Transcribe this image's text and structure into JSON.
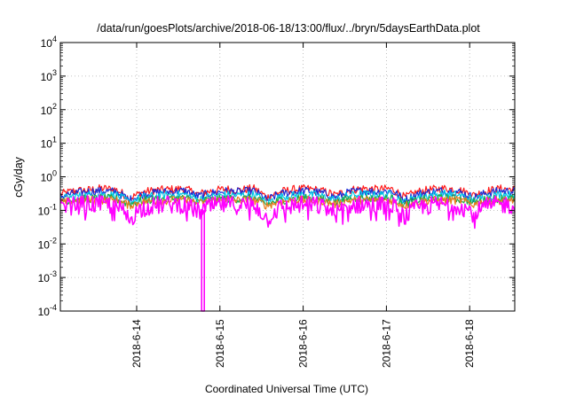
{
  "chart_data": {
    "type": "line",
    "title": "/data/run/goesPlots/archive/2018-06-18/13:00/flux/../bryn/5daysEarthData.plot",
    "xlabel": "Coordinated Universal Time (UTC)",
    "ylabel": "cGy/day",
    "y_scale": "log",
    "ylim": [
      0.0001,
      10000
    ],
    "y_ticks": [
      {
        "value": 0.0001,
        "base": "10",
        "exp": "-4"
      },
      {
        "value": 0.001,
        "base": "10",
        "exp": "-3"
      },
      {
        "value": 0.01,
        "base": "10",
        "exp": "-2"
      },
      {
        "value": 0.1,
        "base": "10",
        "exp": "-1"
      },
      {
        "value": 1,
        "base": "10",
        "exp": "0"
      },
      {
        "value": 10,
        "base": "10",
        "exp": "1"
      },
      {
        "value": 100,
        "base": "10",
        "exp": "2"
      },
      {
        "value": 1000,
        "base": "10",
        "exp": "3"
      },
      {
        "value": 10000,
        "base": "10",
        "exp": "4"
      }
    ],
    "xlim": [
      "2018-06-13T02:00",
      "2018-06-18T13:00"
    ],
    "x_ticks": [
      "2018-6-14",
      "2018-6-15",
      "2018-6-16",
      "2018-6-17",
      "2018-6-18"
    ],
    "grid": true,
    "legend": "none",
    "dip": {
      "time": "2018-06-14T19:00",
      "min_value": 0.0001
    },
    "series": [
      {
        "color": "#ff1a1a",
        "values": [
          0.3,
          0.38,
          0.4,
          0.45,
          0.42,
          0.22,
          0.35,
          0.4,
          0.42,
          0.44,
          0.3,
          0.38,
          0.43,
          0.4,
          0.45,
          0.24,
          0.36,
          0.42,
          0.44,
          0.38,
          0.28,
          0.4,
          0.45,
          0.42,
          0.44,
          0.24,
          0.36,
          0.42,
          0.45,
          0.4,
          0.28,
          0.38,
          0.44,
          0.42
        ]
      },
      {
        "color": "#1a2bd6",
        "values": [
          0.26,
          0.32,
          0.36,
          0.38,
          0.36,
          0.2,
          0.3,
          0.34,
          0.36,
          0.38,
          0.26,
          0.33,
          0.37,
          0.35,
          0.38,
          0.2,
          0.31,
          0.36,
          0.38,
          0.33,
          0.24,
          0.35,
          0.38,
          0.36,
          0.38,
          0.2,
          0.31,
          0.36,
          0.39,
          0.35,
          0.24,
          0.33,
          0.38,
          0.36
        ]
      },
      {
        "color": "#00c8e6",
        "values": [
          0.22,
          0.26,
          0.28,
          0.3,
          0.29,
          0.17,
          0.24,
          0.27,
          0.29,
          0.3,
          0.21,
          0.26,
          0.29,
          0.28,
          0.3,
          0.17,
          0.25,
          0.28,
          0.3,
          0.26,
          0.2,
          0.28,
          0.3,
          0.29,
          0.3,
          0.17,
          0.25,
          0.29,
          0.31,
          0.28,
          0.2,
          0.26,
          0.3,
          0.29
        ]
      },
      {
        "color": "#21a84a",
        "values": [
          0.19,
          0.21,
          0.22,
          0.23,
          0.22,
          0.15,
          0.2,
          0.21,
          0.22,
          0.23,
          0.18,
          0.21,
          0.22,
          0.22,
          0.23,
          0.15,
          0.2,
          0.22,
          0.23,
          0.21,
          0.17,
          0.22,
          0.23,
          0.22,
          0.23,
          0.15,
          0.2,
          0.22,
          0.23,
          0.22,
          0.17,
          0.21,
          0.23,
          0.22
        ]
      },
      {
        "color": "#e87a1a",
        "values": [
          0.17,
          0.19,
          0.2,
          0.2,
          0.2,
          0.14,
          0.18,
          0.19,
          0.2,
          0.2,
          0.16,
          0.19,
          0.2,
          0.2,
          0.2,
          0.14,
          0.18,
          0.2,
          0.2,
          0.19,
          0.15,
          0.2,
          0.2,
          0.2,
          0.2,
          0.14,
          0.18,
          0.2,
          0.2,
          0.2,
          0.15,
          0.19,
          0.2,
          0.2
        ]
      },
      {
        "color": "#ff00ff",
        "values": [
          0.12,
          0.14,
          0.15,
          0.15,
          0.14,
          0.05,
          0.12,
          0.14,
          0.15,
          0.15,
          0.09,
          0.13,
          0.15,
          0.14,
          0.15,
          0.05,
          0.12,
          0.14,
          0.15,
          0.13,
          0.08,
          0.14,
          0.15,
          0.14,
          0.15,
          0.06,
          0.12,
          0.14,
          0.15,
          0.14,
          0.08,
          0.13,
          0.15,
          0.14
        ]
      }
    ]
  }
}
